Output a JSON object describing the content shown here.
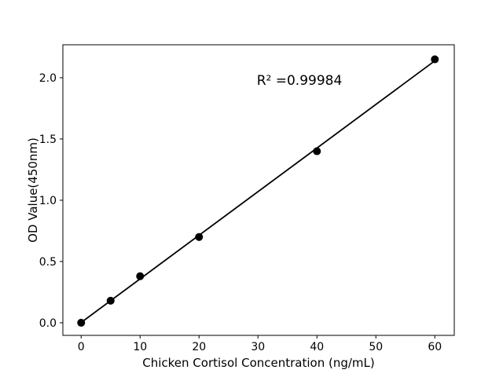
{
  "figure": {
    "background": "#ffffff"
  },
  "chart_data": {
    "type": "scatter",
    "title": "",
    "xlabel": "Chicken Cortisol Concentration (ng/mL)",
    "ylabel": "OD Value(450nm)",
    "annotation": "R² =0.99984",
    "points": {
      "x": [
        0,
        5,
        10,
        20,
        40,
        60
      ],
      "y": [
        0.0,
        0.18,
        0.38,
        0.7,
        1.4,
        2.15
      ]
    },
    "fit_line": {
      "slope": 0.0356,
      "intercept": 0.002,
      "x_start": 0,
      "x_end": 60
    },
    "x_ticks": {
      "values": [
        0,
        10,
        20,
        30,
        40,
        50,
        60
      ],
      "labels": [
        "0",
        "10",
        "20",
        "30",
        "40",
        "50",
        "60"
      ]
    },
    "y_ticks": {
      "values": [
        0.0,
        0.5,
        1.0,
        1.5,
        2.0
      ],
      "labels": [
        "0.0",
        "0.5",
        "1.0",
        "1.5",
        "2.0"
      ]
    },
    "xlim": [
      -3.1,
      63.3
    ],
    "ylim": [
      -0.103,
      2.269
    ],
    "grid": false,
    "legend": null,
    "marker_color": "#000000",
    "line_color": "#000000",
    "text_color": "#000000"
  }
}
